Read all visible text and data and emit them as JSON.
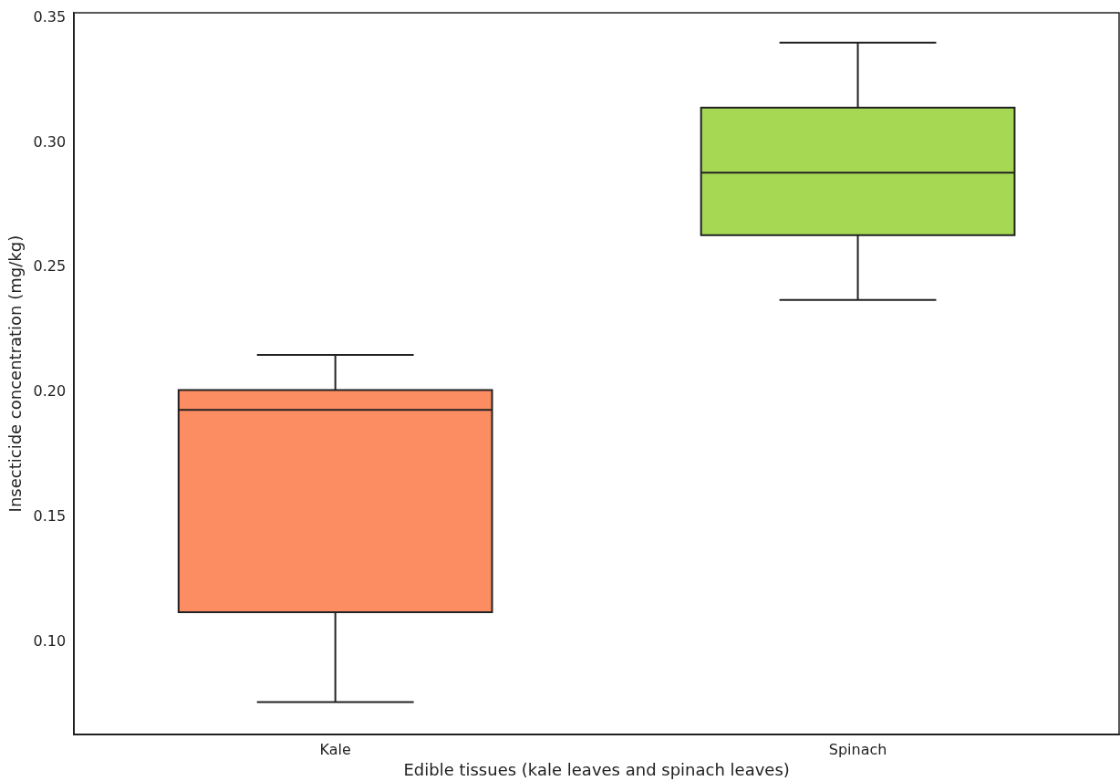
{
  "chart_data": {
    "type": "box",
    "xlabel": "Edible tissues (kale leaves and spinach leaves)",
    "ylabel": "Insecticide concentration (mg/kg)",
    "categories": [
      "Kale",
      "Spinach"
    ],
    "boxes": [
      {
        "low": 0.076,
        "q1": 0.112,
        "median": 0.193,
        "q3": 0.201,
        "high": 0.215
      },
      {
        "low": 0.237,
        "q1": 0.263,
        "median": 0.288,
        "q3": 0.314,
        "high": 0.34
      }
    ],
    "colors": [
      "#fc8d62",
      "#a6d854"
    ],
    "ylim": [
      0.063,
      0.352
    ],
    "yticks": [
      {
        "value": 0.1,
        "label": "0.10"
      },
      {
        "value": 0.15,
        "label": "0.15"
      },
      {
        "value": 0.2,
        "label": "0.20"
      },
      {
        "value": 0.25,
        "label": "0.25"
      },
      {
        "value": 0.3,
        "label": "0.30"
      },
      {
        "value": 0.35,
        "label": "0.35"
      }
    ],
    "grid": false,
    "legend": false
  }
}
